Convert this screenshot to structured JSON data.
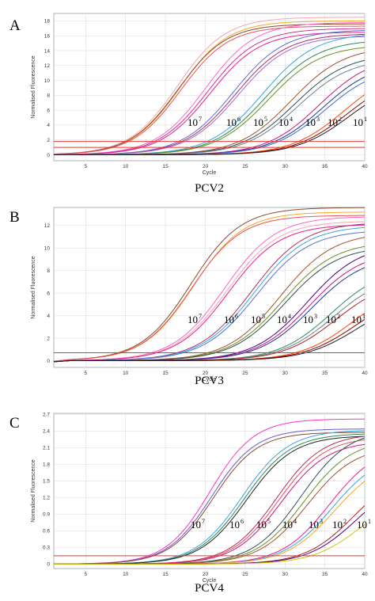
{
  "chart_data": [
    {
      "type": "line",
      "panel_letter": "A",
      "title": "PCV2",
      "xlabel": "Cycle",
      "ylabel": "Normalised Fluorescence",
      "xlim": [
        1,
        40
      ],
      "ylim": [
        -0.8,
        19
      ],
      "xticks": [
        "5",
        "10",
        "15",
        "20",
        "25",
        "30",
        "35",
        "40"
      ],
      "yticks": [
        "0",
        "2",
        "4",
        "6",
        "8",
        "10",
        "12",
        "14",
        "16",
        "18"
      ],
      "thresholds": [
        1.0,
        1.8
      ],
      "concentration_labels": [
        {
          "base": "10",
          "exp": "7"
        },
        {
          "base": "10",
          "exp": "6"
        },
        {
          "base": "10",
          "exp": "5"
        },
        {
          "base": "10",
          "exp": "4"
        },
        {
          "base": "10",
          "exp": "3"
        },
        {
          "base": "10",
          "exp": "2"
        },
        {
          "base": "10",
          "exp": "1"
        }
      ],
      "series": [
        {
          "ct": 16.5,
          "plateau": 18.5,
          "slope": 0.33,
          "color": "#f4a6b0"
        },
        {
          "ct": 16.8,
          "plateau": 18.0,
          "slope": 0.33,
          "color": "#f6a623"
        },
        {
          "ct": 16.6,
          "plateau": 17.6,
          "slope": 0.33,
          "color": "#8b4a2f"
        },
        {
          "ct": 16.9,
          "plateau": 17.3,
          "slope": 0.33,
          "color": "#e8505b"
        },
        {
          "ct": 20.0,
          "plateau": 17.8,
          "slope": 0.32,
          "color": "#ff66cc"
        },
        {
          "ct": 20.3,
          "plateau": 17.0,
          "slope": 0.32,
          "color": "#cc3399"
        },
        {
          "ct": 20.6,
          "plateau": 16.5,
          "slope": 0.32,
          "color": "#e91e8c"
        },
        {
          "ct": 23.5,
          "plateau": 16.8,
          "slope": 0.31,
          "color": "#5b6fd6"
        },
        {
          "ct": 23.8,
          "plateau": 16.3,
          "slope": 0.31,
          "color": "#b03060"
        },
        {
          "ct": 24.1,
          "plateau": 16.0,
          "slope": 0.31,
          "color": "#a06bd6"
        },
        {
          "ct": 27.2,
          "plateau": 16.4,
          "slope": 0.3,
          "color": "#3aa6e0"
        },
        {
          "ct": 27.6,
          "plateau": 15.5,
          "slope": 0.3,
          "color": "#2e8b57"
        },
        {
          "ct": 27.9,
          "plateau": 14.8,
          "slope": 0.3,
          "color": "#6b8e23"
        },
        {
          "ct": 30.8,
          "plateau": 14.6,
          "slope": 0.3,
          "color": "#a0522d"
        },
        {
          "ct": 31.2,
          "plateau": 13.6,
          "slope": 0.3,
          "color": "#2f4f4f"
        },
        {
          "ct": 31.6,
          "plateau": 13.0,
          "slope": 0.3,
          "color": "#708090"
        },
        {
          "ct": 34.3,
          "plateau": 13.4,
          "slope": 0.3,
          "color": "#c71585"
        },
        {
          "ct": 34.7,
          "plateau": 12.6,
          "slope": 0.3,
          "color": "#1e3a8a"
        },
        {
          "ct": 35.0,
          "plateau": 12.0,
          "slope": 0.3,
          "color": "#4169e1"
        },
        {
          "ct": 37.4,
          "plateau": 11.8,
          "slope": 0.3,
          "color": "#ff4500"
        },
        {
          "ct": 37.8,
          "plateau": 11.0,
          "slope": 0.3,
          "color": "#8b0000"
        },
        {
          "ct": 38.1,
          "plateau": 10.4,
          "slope": 0.3,
          "color": "#222222"
        }
      ]
    },
    {
      "type": "line",
      "panel_letter": "B",
      "title": "PCV3",
      "xlabel": "Cycle",
      "ylabel": "Normalised Fluorescence",
      "xlim": [
        1,
        40
      ],
      "ylim": [
        -0.6,
        13.6
      ],
      "xticks": [
        "5",
        "10",
        "15",
        "20",
        "25",
        "30",
        "35",
        "40"
      ],
      "yticks": [
        "0",
        "2",
        "4",
        "6",
        "8",
        "10",
        "12"
      ],
      "thresholds": [
        0.7
      ],
      "concentration_labels": [
        {
          "base": "10",
          "exp": "7"
        },
        {
          "base": "10",
          "exp": "6"
        },
        {
          "base": "10",
          "exp": "5"
        },
        {
          "base": "10",
          "exp": "4"
        },
        {
          "base": "10",
          "exp": "3"
        },
        {
          "base": "10",
          "exp": "2"
        },
        {
          "base": "10",
          "exp": "1"
        }
      ],
      "series": [
        {
          "ct": 18.2,
          "plateau": 13.6,
          "slope": 0.32,
          "color": "#8b4a2f"
        },
        {
          "ct": 18.5,
          "plateau": 13.2,
          "slope": 0.32,
          "color": "#f6a623"
        },
        {
          "ct": 18.3,
          "plateau": 12.9,
          "slope": 0.32,
          "color": "#e8505b"
        },
        {
          "ct": 22.4,
          "plateau": 12.8,
          "slope": 0.31,
          "color": "#ff66cc"
        },
        {
          "ct": 22.7,
          "plateau": 12.4,
          "slope": 0.31,
          "color": "#f4a6b0"
        },
        {
          "ct": 22.9,
          "plateau": 12.1,
          "slope": 0.31,
          "color": "#e91e8c"
        },
        {
          "ct": 25.8,
          "plateau": 12.3,
          "slope": 0.3,
          "color": "#b03060"
        },
        {
          "ct": 26.1,
          "plateau": 12.0,
          "slope": 0.3,
          "color": "#3aa6e0"
        },
        {
          "ct": 26.4,
          "plateau": 11.6,
          "slope": 0.3,
          "color": "#5b6fd6"
        },
        {
          "ct": 29.4,
          "plateau": 11.4,
          "slope": 0.3,
          "color": "#a0522d"
        },
        {
          "ct": 29.7,
          "plateau": 10.6,
          "slope": 0.3,
          "color": "#6b8e23"
        },
        {
          "ct": 30.0,
          "plateau": 10.2,
          "slope": 0.3,
          "color": "#2f4f4f"
        },
        {
          "ct": 32.8,
          "plateau": 10.4,
          "slope": 0.3,
          "color": "#4b0082"
        },
        {
          "ct": 33.1,
          "plateau": 9.8,
          "slope": 0.3,
          "color": "#c71585"
        },
        {
          "ct": 33.4,
          "plateau": 9.4,
          "slope": 0.3,
          "color": "#1e3a8a"
        },
        {
          "ct": 35.8,
          "plateau": 8.4,
          "slope": 0.3,
          "color": "#2e8b57"
        },
        {
          "ct": 36.1,
          "plateau": 7.8,
          "slope": 0.3,
          "color": "#708090"
        },
        {
          "ct": 36.4,
          "plateau": 7.3,
          "slope": 0.3,
          "color": "#b22222"
        },
        {
          "ct": 38.6,
          "plateau": 7.0,
          "slope": 0.3,
          "color": "#ff4500"
        },
        {
          "ct": 38.9,
          "plateau": 6.3,
          "slope": 0.3,
          "color": "#8b0000"
        },
        {
          "ct": 39.2,
          "plateau": 5.8,
          "slope": 0.3,
          "color": "#222222"
        }
      ]
    },
    {
      "type": "line",
      "panel_letter": "C",
      "title": "PCV4",
      "xlabel": "Cycle",
      "ylabel": "Normalised Fluorescence",
      "xlim": [
        1,
        40
      ],
      "ylim": [
        -0.08,
        2.72
      ],
      "xticks": [
        "5",
        "10",
        "15",
        "20",
        "25",
        "30",
        "35",
        "40"
      ],
      "yticks": [
        "0",
        "0.3",
        "0.6",
        "0.9",
        "1.2",
        "1.5",
        "1.8",
        "2.1",
        "2.4",
        "2.7"
      ],
      "thresholds": [
        0.15
      ],
      "concentration_labels": [
        {
          "base": "10",
          "exp": "7"
        },
        {
          "base": "10",
          "exp": "6"
        },
        {
          "base": "10",
          "exp": "5"
        },
        {
          "base": "10",
          "exp": "4"
        },
        {
          "base": "10",
          "exp": "3"
        },
        {
          "base": "10",
          "exp": "2"
        },
        {
          "base": "10",
          "exp": "1"
        }
      ],
      "series": [
        {
          "ct": 20.6,
          "plateau": 2.62,
          "slope": 0.36,
          "color": "#ff33cc"
        },
        {
          "ct": 20.8,
          "plateau": 2.44,
          "slope": 0.36,
          "color": "#6a5acd"
        },
        {
          "ct": 21.0,
          "plateau": 2.38,
          "slope": 0.36,
          "color": "#8b4a2f"
        },
        {
          "ct": 24.6,
          "plateau": 2.42,
          "slope": 0.34,
          "color": "#3aa6e0"
        },
        {
          "ct": 24.9,
          "plateau": 2.36,
          "slope": 0.34,
          "color": "#2e8b57"
        },
        {
          "ct": 25.2,
          "plateau": 2.32,
          "slope": 0.34,
          "color": "#222222"
        },
        {
          "ct": 28.9,
          "plateau": 2.36,
          "slope": 0.34,
          "color": "#b03060"
        },
        {
          "ct": 29.2,
          "plateau": 2.3,
          "slope": 0.34,
          "color": "#e8505b"
        },
        {
          "ct": 29.5,
          "plateau": 2.22,
          "slope": 0.34,
          "color": "#c71585"
        },
        {
          "ct": 32.0,
          "plateau": 2.44,
          "slope": 0.33,
          "color": "#2f4f4f"
        },
        {
          "ct": 32.4,
          "plateau": 2.26,
          "slope": 0.33,
          "color": "#6b8e23"
        },
        {
          "ct": 32.8,
          "plateau": 2.14,
          "slope": 0.33,
          "color": "#a0522d"
        },
        {
          "ct": 35.6,
          "plateau": 2.16,
          "slope": 0.33,
          "color": "#e91e8c"
        },
        {
          "ct": 35.9,
          "plateau": 2.02,
          "slope": 0.33,
          "color": "#3aa6e0"
        },
        {
          "ct": 36.2,
          "plateau": 1.92,
          "slope": 0.33,
          "color": "#f6a623"
        },
        {
          "ct": 38.6,
          "plateau": 1.72,
          "slope": 0.33,
          "color": "#b22222"
        },
        {
          "ct": 38.9,
          "plateau": 1.58,
          "slope": 0.33,
          "color": "#4b0082"
        },
        {
          "ct": 39.4,
          "plateau": 1.3,
          "slope": 0.33,
          "color": "#d4c400"
        }
      ]
    }
  ],
  "style": {
    "threshold_color": "#e53935",
    "grid_color": "#d9d9d9",
    "frame_color": "#9aa0a6"
  }
}
